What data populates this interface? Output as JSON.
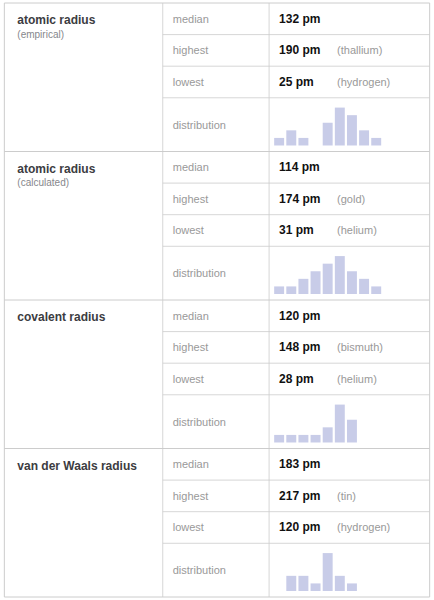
{
  "chart_data": [
    {
      "type": "bar",
      "title": "atomic radius",
      "subtitle": "(empirical)",
      "annotations": [
        [
          "median",
          "132 pm"
        ],
        [
          "highest",
          "190 pm",
          "(thallium)"
        ],
        [
          "lowest",
          "25 pm",
          "(hydrogen)"
        ],
        [
          "distribution"
        ]
      ],
      "categories": [
        null,
        null,
        null,
        null,
        null,
        null,
        null,
        null,
        null
      ],
      "values": [
        1,
        2,
        1,
        0,
        3,
        5,
        4,
        2,
        1
      ],
      "ylim": [
        0,
        5.5
      ],
      "tick_labels": false,
      "color": "#c8cce8"
    },
    {
      "type": "bar",
      "title": "atomic radius",
      "subtitle": "(calculated)",
      "annotations": [
        [
          "median",
          "114 pm"
        ],
        [
          "highest",
          "174 pm",
          "(gold)"
        ],
        [
          "lowest",
          "31 pm",
          "(helium)"
        ],
        [
          "distribution"
        ]
      ],
      "categories": [
        null,
        null,
        null,
        null,
        null,
        null,
        null,
        null,
        null
      ],
      "values": [
        1,
        1,
        2,
        3,
        4,
        5,
        3,
        2,
        1
      ],
      "ylim": [
        0,
        5.5
      ],
      "tick_labels": false,
      "color": "#c8cce8"
    },
    {
      "type": "bar",
      "title": "covalent radius",
      "annotations": [
        [
          "median",
          "120 pm"
        ],
        [
          "highest",
          "148 pm",
          "(bismuth)"
        ],
        [
          "lowest",
          "28 pm",
          "(helium)"
        ],
        [
          "distribution"
        ]
      ],
      "categories": [
        null,
        null,
        null,
        null,
        null,
        null,
        null,
        null,
        null
      ],
      "values": [
        1,
        1,
        1,
        1,
        2,
        5,
        3,
        0,
        0
      ],
      "ylim": [
        0,
        5.5
      ],
      "tick_labels": false,
      "color": "#c8cce8"
    },
    {
      "type": "bar",
      "title": "van der Waals radius",
      "annotations": [
        [
          "median",
          "183 pm"
        ],
        [
          "highest",
          "217 pm",
          "(tin)"
        ],
        [
          "lowest",
          "120 pm",
          "(hydrogen)"
        ],
        [
          "distribution"
        ]
      ],
      "categories": [
        null,
        null,
        null,
        null,
        null,
        null,
        null,
        null,
        null
      ],
      "values": [
        0,
        2,
        2,
        1,
        5,
        2,
        1,
        0,
        0
      ],
      "ylim": [
        0,
        5.5
      ],
      "tick_labels": false,
      "color": "#c8cce8"
    }
  ]
}
